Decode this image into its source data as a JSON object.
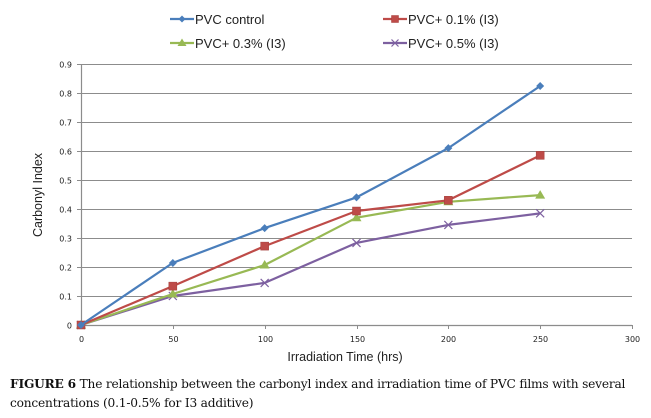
{
  "chart_data": {
    "type": "line",
    "title": "",
    "xlabel": "Irradiation Time (hrs)",
    "ylabel": "Carbonyl Index",
    "xlim": [
      0,
      300
    ],
    "ylim": [
      0,
      0.9
    ],
    "xticks": [
      0,
      50,
      100,
      150,
      200,
      250,
      300
    ],
    "yticks": [
      0,
      0.1,
      0.2,
      0.3,
      0.4,
      0.5,
      0.6,
      0.7,
      0.8,
      0.9
    ],
    "xtick_labels": [
      "0",
      "50",
      "100",
      "150",
      "200",
      "250",
      "300"
    ],
    "ytick_labels": [
      "0",
      "0.1",
      "0.2",
      "0.3",
      "0.4",
      "0.5",
      "0.6",
      "0.7",
      "0.8",
      "0.9"
    ],
    "grid": "horizontal",
    "legend_position": "top",
    "x": [
      0,
      50,
      100,
      150,
      200,
      250
    ],
    "series": [
      {
        "name": "PVC control",
        "color": "#4a7ebb",
        "marker": "diamond",
        "values": [
          0,
          0.214,
          0.334,
          0.44,
          0.61,
          0.824
        ]
      },
      {
        "name": "PVC+ 0.1% (I3)",
        "color": "#be4b48",
        "marker": "square",
        "values": [
          0,
          0.134,
          0.272,
          0.393,
          0.43,
          0.585
        ]
      },
      {
        "name": "PVC+ 0.3% (I3)",
        "color": "#98b954",
        "marker": "triangle",
        "values": [
          0,
          0.107,
          0.207,
          0.37,
          0.425,
          0.448
        ]
      },
      {
        "name": "PVC+ 0.5% (I3)",
        "color": "#7d60a0",
        "marker": "x",
        "values": [
          0,
          0.1,
          0.145,
          0.283,
          0.345,
          0.385
        ]
      }
    ]
  },
  "caption": {
    "label": "FIGURE 6",
    "text": " The relationship between the carbonyl index and irradiation time of PVC films with several concentrations (0.1-0.5% for I3 additive)"
  }
}
